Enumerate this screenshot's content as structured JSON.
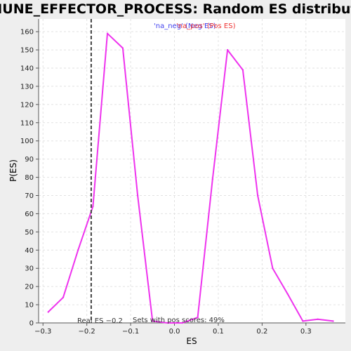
{
  "chart_data": {
    "type": "line",
    "title": "IMMUNE_EFFECTOR_PROCESS: Random ES distribution",
    "xlabel": "ES",
    "ylabel": "P(ES)",
    "xlim": [
      -0.31,
      0.39
    ],
    "ylim": [
      0,
      167
    ],
    "x_ticks": [
      -0.3,
      -0.2,
      -0.1,
      0.0,
      0.1,
      0.2,
      0.3
    ],
    "x_tick_labels": [
      "−0.3",
      "−0.2",
      "−0.1",
      "0.0",
      "0.1",
      "0.2",
      "0.3"
    ],
    "y_ticks": [
      0,
      10,
      20,
      30,
      40,
      50,
      60,
      70,
      80,
      90,
      100,
      110,
      120,
      130,
      140,
      150,
      160
    ],
    "grid": true,
    "series": [
      {
        "name": "P(ES)",
        "color": "#ee33ee",
        "x": [
          -0.288,
          -0.254,
          -0.22,
          -0.186,
          -0.153,
          -0.118,
          -0.084,
          -0.05,
          -0.016,
          0.018,
          0.053,
          0.087,
          0.121,
          0.156,
          0.19,
          0.224,
          0.258,
          0.293,
          0.327,
          0.362
        ],
        "y": [
          6,
          14,
          40,
          64,
          159,
          151,
          70,
          1,
          0,
          0,
          3,
          79,
          150,
          139,
          70,
          30,
          16,
          1,
          2,
          1
        ]
      }
    ],
    "real_es": {
      "value": -0.19,
      "label": "Real ES −0.2",
      "color": "#444444"
    },
    "legend": [
      {
        "label": "'na_neg' (Neg ES)",
        "color": "#4444ee"
      },
      {
        "label": "'na_pos' (Pos ES)",
        "color": "#ee3333"
      }
    ],
    "annotations": {
      "pos_scores": "Sets with pos scores: 49%"
    }
  }
}
